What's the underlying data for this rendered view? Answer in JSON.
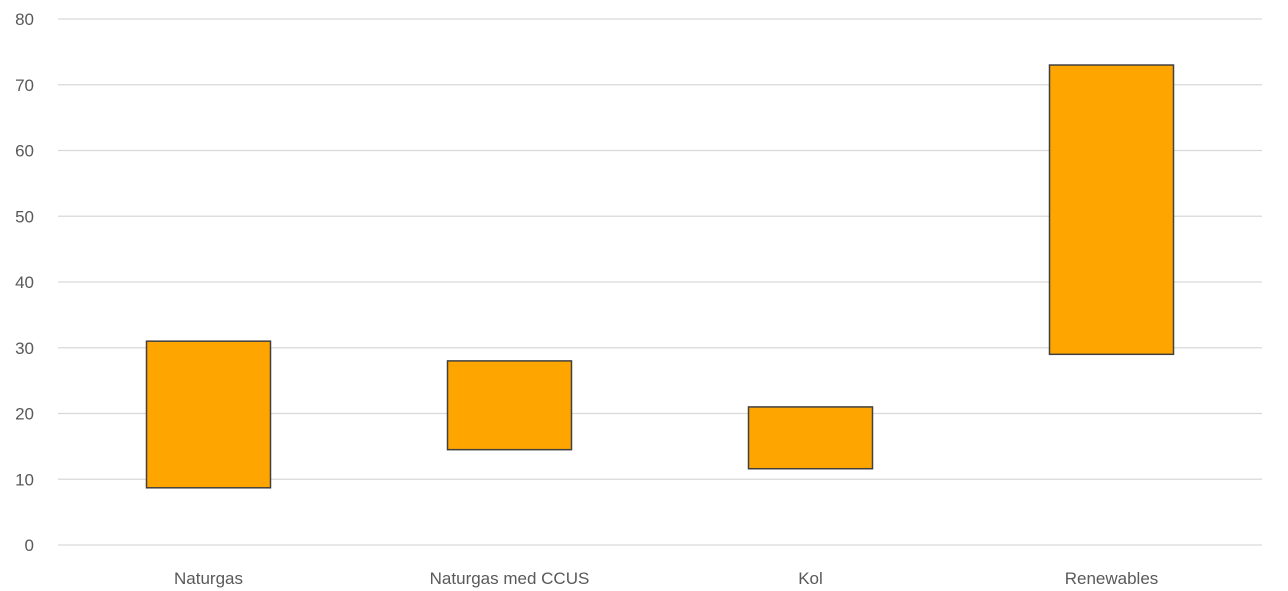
{
  "chart_data": {
    "type": "bar",
    "subtype": "floating-range",
    "categories": [
      "Naturgas",
      "Naturgas med CCUS",
      "Kol",
      "Renewables"
    ],
    "series": [
      {
        "low": 8.7,
        "high": 31.0,
        "label": "Naturgas"
      },
      {
        "low": 14.5,
        "high": 28.0,
        "label": "Naturgas med CCUS"
      },
      {
        "low": 11.6,
        "high": 21.0,
        "label": "Kol"
      },
      {
        "low": 29.0,
        "high": 73.0,
        "label": "Renewables"
      }
    ],
    "ranges": [
      [
        8.7,
        31.0
      ],
      [
        14.5,
        28.0
      ],
      [
        11.6,
        21.0
      ],
      [
        29.0,
        73.0
      ]
    ],
    "y_ticks": [
      "0",
      "10",
      "20",
      "30",
      "40",
      "50",
      "60",
      "70",
      "80"
    ],
    "ylim": [
      0,
      80
    ],
    "grid": true,
    "legend": "none",
    "bar_color": "#FFA500",
    "bar_border_color": "#404040",
    "title": "",
    "xlabel": "",
    "ylabel": ""
  }
}
